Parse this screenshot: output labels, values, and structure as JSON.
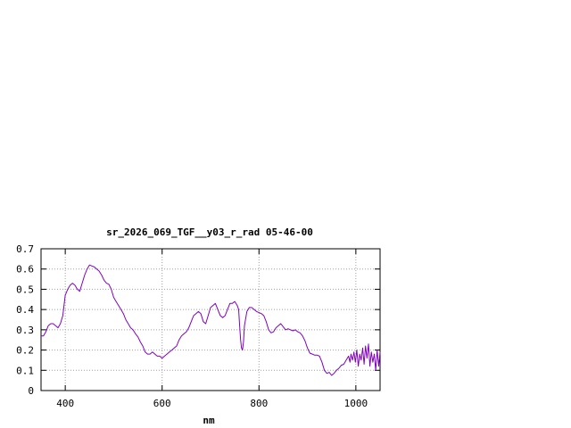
{
  "chart_data": {
    "type": "line",
    "title": "sr_2026_069_TGF__y03_r_rad 05-46-00",
    "xlabel": "nm",
    "ylabel": "",
    "xlim": [
      350,
      1050
    ],
    "ylim": [
      0,
      0.7
    ],
    "xticks": [
      400,
      600,
      800,
      1000
    ],
    "xtick_labels": [
      "400",
      "600",
      "800",
      "1000"
    ],
    "yticks": [
      0,
      0.1,
      0.2,
      0.3,
      0.4,
      0.5,
      0.6,
      0.7
    ],
    "ytick_labels": [
      "0",
      "0.1",
      "0.2",
      "0.3",
      "0.4",
      "0.5",
      "0.6",
      "0.7"
    ],
    "grid": true,
    "line_color": "#8000c0",
    "grid_color": "#a0a0a0",
    "series": [
      {
        "points": [
          [
            350,
            0.27
          ],
          [
            355,
            0.27
          ],
          [
            360,
            0.29
          ],
          [
            365,
            0.32
          ],
          [
            370,
            0.33
          ],
          [
            375,
            0.33
          ],
          [
            380,
            0.32
          ],
          [
            385,
            0.31
          ],
          [
            390,
            0.33
          ],
          [
            395,
            0.37
          ],
          [
            400,
            0.47
          ],
          [
            405,
            0.5
          ],
          [
            410,
            0.52
          ],
          [
            415,
            0.53
          ],
          [
            420,
            0.52
          ],
          [
            425,
            0.5
          ],
          [
            430,
            0.49
          ],
          [
            435,
            0.53
          ],
          [
            440,
            0.57
          ],
          [
            445,
            0.6
          ],
          [
            450,
            0.62
          ],
          [
            455,
            0.615
          ],
          [
            460,
            0.61
          ],
          [
            465,
            0.6
          ],
          [
            470,
            0.59
          ],
          [
            475,
            0.57
          ],
          [
            480,
            0.545
          ],
          [
            485,
            0.53
          ],
          [
            490,
            0.525
          ],
          [
            495,
            0.5
          ],
          [
            500,
            0.46
          ],
          [
            505,
            0.44
          ],
          [
            510,
            0.42
          ],
          [
            515,
            0.4
          ],
          [
            520,
            0.38
          ],
          [
            525,
            0.35
          ],
          [
            530,
            0.33
          ],
          [
            535,
            0.31
          ],
          [
            540,
            0.3
          ],
          [
            545,
            0.28
          ],
          [
            550,
            0.265
          ],
          [
            555,
            0.24
          ],
          [
            560,
            0.22
          ],
          [
            565,
            0.19
          ],
          [
            570,
            0.18
          ],
          [
            575,
            0.18
          ],
          [
            580,
            0.19
          ],
          [
            585,
            0.18
          ],
          [
            590,
            0.17
          ],
          [
            595,
            0.17
          ],
          [
            600,
            0.16
          ],
          [
            605,
            0.17
          ],
          [
            610,
            0.18
          ],
          [
            615,
            0.19
          ],
          [
            620,
            0.2
          ],
          [
            625,
            0.21
          ],
          [
            630,
            0.22
          ],
          [
            635,
            0.25
          ],
          [
            640,
            0.27
          ],
          [
            645,
            0.28
          ],
          [
            650,
            0.29
          ],
          [
            655,
            0.31
          ],
          [
            660,
            0.34
          ],
          [
            665,
            0.37
          ],
          [
            670,
            0.38
          ],
          [
            675,
            0.39
          ],
          [
            680,
            0.38
          ],
          [
            685,
            0.34
          ],
          [
            690,
            0.33
          ],
          [
            695,
            0.37
          ],
          [
            700,
            0.41
          ],
          [
            705,
            0.42
          ],
          [
            710,
            0.43
          ],
          [
            715,
            0.4
          ],
          [
            720,
            0.37
          ],
          [
            725,
            0.36
          ],
          [
            730,
            0.37
          ],
          [
            735,
            0.4
          ],
          [
            740,
            0.43
          ],
          [
            745,
            0.43
          ],
          [
            750,
            0.44
          ],
          [
            755,
            0.42
          ],
          [
            758,
            0.4
          ],
          [
            760,
            0.32
          ],
          [
            762,
            0.25
          ],
          [
            764,
            0.21
          ],
          [
            766,
            0.2
          ],
          [
            768,
            0.24
          ],
          [
            770,
            0.32
          ],
          [
            775,
            0.39
          ],
          [
            780,
            0.41
          ],
          [
            785,
            0.41
          ],
          [
            790,
            0.4
          ],
          [
            795,
            0.39
          ],
          [
            800,
            0.385
          ],
          [
            805,
            0.38
          ],
          [
            810,
            0.37
          ],
          [
            815,
            0.34
          ],
          [
            820,
            0.3
          ],
          [
            825,
            0.285
          ],
          [
            830,
            0.29
          ],
          [
            835,
            0.31
          ],
          [
            840,
            0.32
          ],
          [
            845,
            0.33
          ],
          [
            850,
            0.315
          ],
          [
            855,
            0.3
          ],
          [
            860,
            0.305
          ],
          [
            865,
            0.3
          ],
          [
            870,
            0.295
          ],
          [
            875,
            0.3
          ],
          [
            880,
            0.29
          ],
          [
            885,
            0.285
          ],
          [
            890,
            0.27
          ],
          [
            895,
            0.245
          ],
          [
            900,
            0.21
          ],
          [
            905,
            0.185
          ],
          [
            910,
            0.18
          ],
          [
            915,
            0.175
          ],
          [
            920,
            0.175
          ],
          [
            925,
            0.17
          ],
          [
            930,
            0.14
          ],
          [
            935,
            0.1
          ],
          [
            940,
            0.085
          ],
          [
            945,
            0.09
          ],
          [
            950,
            0.075
          ],
          [
            955,
            0.085
          ],
          [
            960,
            0.1
          ],
          [
            965,
            0.11
          ],
          [
            970,
            0.125
          ],
          [
            975,
            0.13
          ],
          [
            980,
            0.15
          ],
          [
            985,
            0.17
          ],
          [
            988,
            0.14
          ],
          [
            990,
            0.18
          ],
          [
            993,
            0.15
          ],
          [
            996,
            0.19
          ],
          [
            999,
            0.14
          ],
          [
            1002,
            0.2
          ],
          [
            1005,
            0.12
          ],
          [
            1008,
            0.18
          ],
          [
            1011,
            0.15
          ],
          [
            1014,
            0.21
          ],
          [
            1017,
            0.13
          ],
          [
            1020,
            0.22
          ],
          [
            1023,
            0.16
          ],
          [
            1026,
            0.23
          ],
          [
            1029,
            0.12
          ],
          [
            1032,
            0.19
          ],
          [
            1035,
            0.14
          ],
          [
            1038,
            0.18
          ],
          [
            1041,
            0.1
          ],
          [
            1044,
            0.2
          ],
          [
            1047,
            0.12
          ],
          [
            1050,
            0.19
          ]
        ]
      }
    ]
  }
}
